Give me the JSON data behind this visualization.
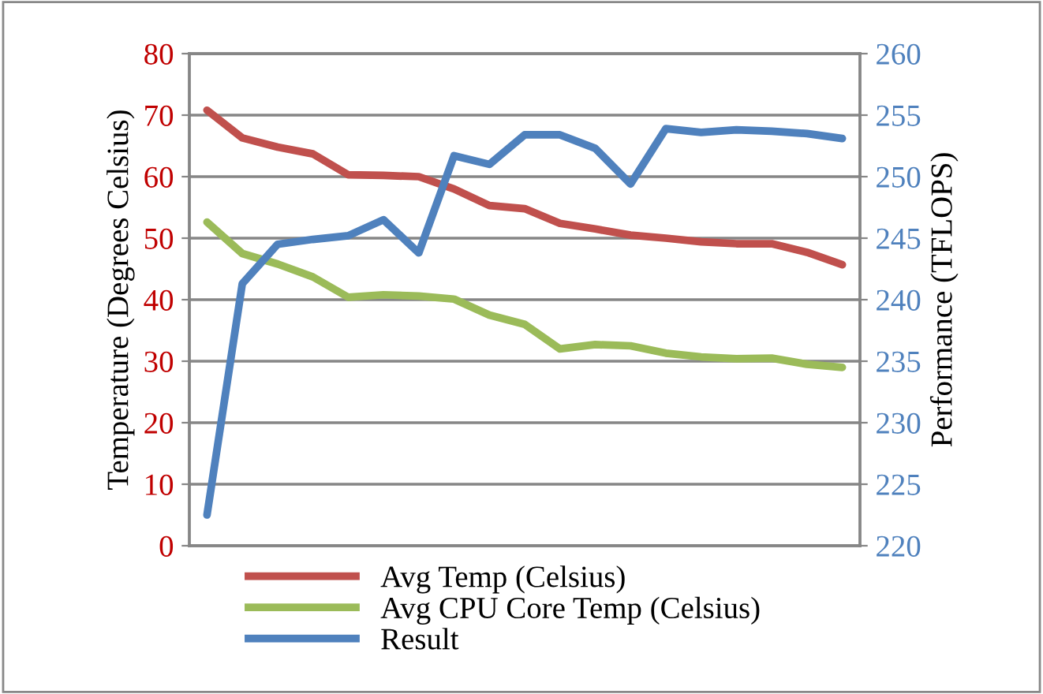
{
  "chart_data": {
    "type": "line",
    "ylabel": "Temperature (Degrees Celsius)",
    "y2label": "Performance (TFLOPS)",
    "categories": [
      null,
      null,
      null,
      null,
      null,
      null,
      null,
      null,
      null,
      null,
      null,
      null,
      null,
      null,
      null,
      null,
      null,
      null,
      null
    ],
    "series": [
      {
        "name": "Avg Temp (Celsius)",
        "color": "#c0504d",
        "values": [
          70.8,
          66.3,
          64.8,
          63.7,
          60.3,
          60.2,
          60.0,
          58.0,
          55.3,
          54.8,
          52.4,
          51.5,
          50.5,
          50.0,
          49.4,
          49.1,
          49.1,
          47.7,
          45.7
        ]
      },
      {
        "name": "Avg CPU Core Temp (Celsius)",
        "color": "#9bbb59",
        "values": [
          52.6,
          47.5,
          45.8,
          43.7,
          40.4,
          40.8,
          40.6,
          40.1,
          37.5,
          36.0,
          32.0,
          32.7,
          32.5,
          31.3,
          30.7,
          30.4,
          30.5,
          29.5,
          29.0
        ]
      },
      {
        "name": "Result",
        "color": "#4f81bd",
        "axis": "y2",
        "values": [
          222.5,
          241.3,
          244.5,
          244.9,
          245.2,
          246.5,
          243.8,
          251.7,
          251.0,
          253.4,
          253.4,
          252.3,
          249.4,
          253.9,
          253.6,
          253.8,
          253.7,
          253.5,
          253.1
        ]
      }
    ],
    "ylim": [
      0,
      80
    ],
    "yticks": [
      0,
      10,
      20,
      30,
      40,
      50,
      60,
      70,
      80
    ],
    "y2lim": [
      220,
      260
    ],
    "y2ticks": [
      220,
      225,
      230,
      235,
      240,
      245,
      250,
      255,
      260
    ],
    "grid": "y",
    "legend": "bottom",
    "marker": "none",
    "line_style": "solid"
  }
}
